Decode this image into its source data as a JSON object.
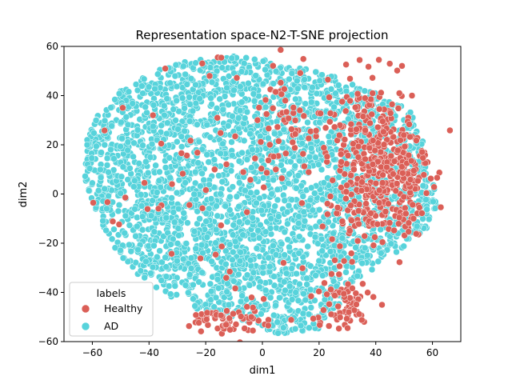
{
  "chart_data": {
    "type": "scatter",
    "title": "Representation space-N2-T-SNE projection",
    "xlabel": "dim1",
    "ylabel": "dim2",
    "xlim": [
      -70,
      70
    ],
    "ylim": [
      -60,
      60
    ],
    "xticks": [
      -60,
      -40,
      -20,
      0,
      20,
      40,
      60
    ],
    "yticks": [
      -60,
      -40,
      -20,
      0,
      20,
      40,
      60
    ],
    "grid": false,
    "legend": {
      "title": "labels",
      "placement": "lower-left",
      "entries": [
        {
          "name": "Healthy",
          "color": "#db5f57"
        },
        {
          "name": "AD",
          "color": "#57d3db"
        }
      ]
    },
    "series": [
      {
        "name": "AD",
        "color": "#57d3db",
        "description": "dense cloud filling most of the left/center region",
        "shape": {
          "polygon": [
            [
              -62,
              22
            ],
            [
              -58,
              32
            ],
            [
              -50,
              42
            ],
            [
              -38,
              50
            ],
            [
              -25,
              55
            ],
            [
              -10,
              56
            ],
            [
              5,
              54
            ],
            [
              18,
              50
            ],
            [
              28,
              47
            ],
            [
              35,
              44
            ],
            [
              45,
              38
            ],
            [
              52,
              34
            ],
            [
              56,
              24
            ],
            [
              60,
              8
            ],
            [
              62,
              -4
            ],
            [
              58,
              -14
            ],
            [
              50,
              -22
            ],
            [
              42,
              -28
            ],
            [
              35,
              -34
            ],
            [
              28,
              -44
            ],
            [
              20,
              -55
            ],
            [
              5,
              -57
            ],
            [
              -5,
              -52
            ],
            [
              -15,
              -50
            ],
            [
              -25,
              -46
            ],
            [
              -35,
              -40
            ],
            [
              -45,
              -32
            ],
            [
              -52,
              -22
            ],
            [
              -58,
              -10
            ],
            [
              -62,
              2
            ],
            [
              -63,
              12
            ]
          ]
        }
      },
      {
        "name": "Healthy",
        "color": "#db5f57",
        "description": "concentrated on right side plus scattered points throughout",
        "clusters": [
          {
            "cx": 38,
            "cy": 12,
            "rx": 14,
            "ry": 30,
            "weight": 0.45
          },
          {
            "cx": 48,
            "cy": 10,
            "rx": 10,
            "ry": 24,
            "weight": 0.2
          },
          {
            "cx": 28,
            "cy": -45,
            "rx": 10,
            "ry": 10,
            "weight": 0.1
          },
          {
            "cx": -12,
            "cy": -52,
            "rx": 12,
            "ry": 6,
            "weight": 0.08
          },
          {
            "cx": 10,
            "cy": 30,
            "rx": 10,
            "ry": 20,
            "weight": 0.07
          }
        ]
      }
    ]
  }
}
